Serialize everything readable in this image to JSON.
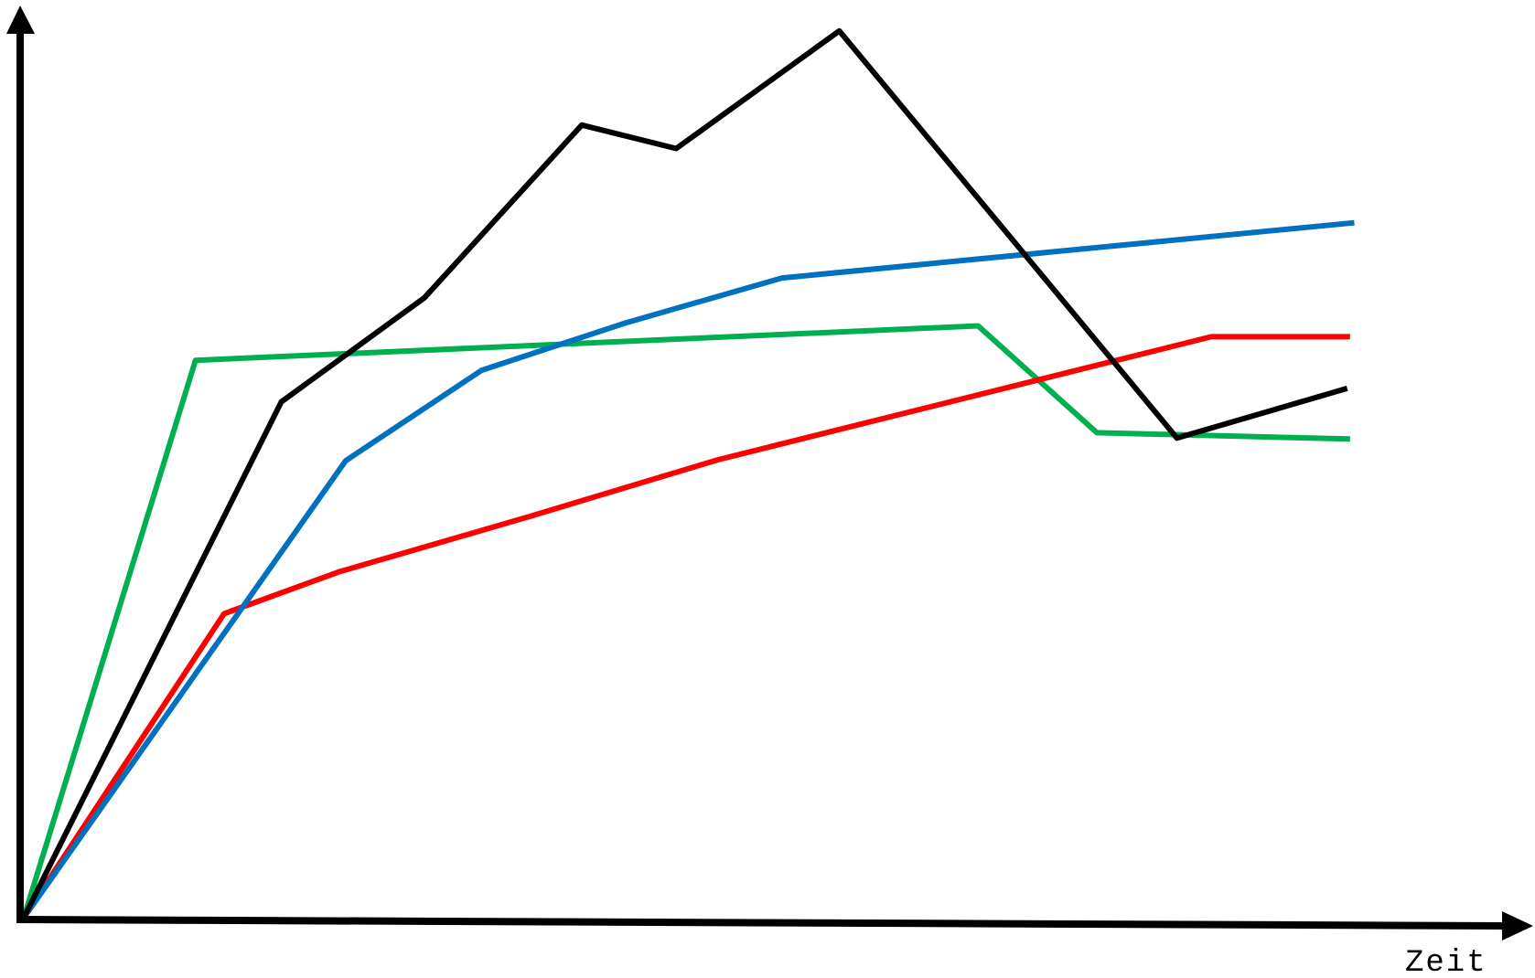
{
  "chart_data": {
    "type": "line",
    "title": "",
    "xlabel": "Zeit",
    "ylabel": "",
    "grid": false,
    "legend": "none",
    "xlim": [
      0,
      100
    ],
    "ylim": [
      0,
      100
    ],
    "series": [
      {
        "color": "#000000",
        "points": [
          [
            0,
            0
          ],
          [
            18,
            57
          ],
          [
            28,
            68.5
          ],
          [
            39,
            87.6
          ],
          [
            45.6,
            85
          ],
          [
            57,
            98
          ],
          [
            80.6,
            53
          ],
          [
            92.5,
            58.5
          ]
        ]
      },
      {
        "color": "#0070c0",
        "points": [
          [
            0,
            0
          ],
          [
            22.5,
            50.5
          ],
          [
            32,
            60.5
          ],
          [
            42,
            65.7
          ],
          [
            53,
            70.7
          ],
          [
            93,
            76.8
          ]
        ]
      },
      {
        "color": "#00b050",
        "points": [
          [
            0,
            0
          ],
          [
            12,
            61.6
          ],
          [
            66.7,
            65.4
          ],
          [
            75,
            53.6
          ],
          [
            92.7,
            52.9
          ]
        ]
      },
      {
        "color": "#ff0000",
        "points": [
          [
            0,
            0
          ],
          [
            14,
            33.6
          ],
          [
            22,
            38.2
          ],
          [
            35.5,
            44.4
          ],
          [
            48.5,
            50.6
          ],
          [
            83,
            64.2
          ],
          [
            92.7,
            64.2
          ]
        ]
      }
    ]
  }
}
